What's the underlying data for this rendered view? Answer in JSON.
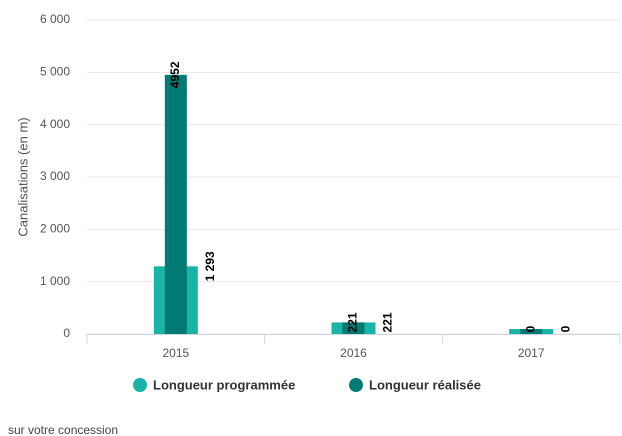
{
  "chart_data": {
    "type": "bar",
    "y_axis_label": "Canalisations (en m)",
    "categories": [
      "2015",
      "2016",
      "2017"
    ],
    "series": [
      {
        "name": "Longueur programmée",
        "color": "#1ab3a6",
        "values": [
          1293,
          221,
          0
        ],
        "value_labels": [
          "1 293",
          "221",
          "0"
        ]
      },
      {
        "name": "Longueur réalisée",
        "color": "#007a73",
        "values": [
          4952,
          221,
          0
        ],
        "value_labels": [
          "4952",
          "221",
          "0"
        ]
      }
    ],
    "ylim": [
      0,
      6000
    ],
    "yticks": [
      {
        "value": 0,
        "label": "0"
      },
      {
        "value": 1000,
        "label": "1 000"
      },
      {
        "value": 2000,
        "label": "2 000"
      },
      {
        "value": 3000,
        "label": "3 000"
      },
      {
        "value": 4000,
        "label": "4 000"
      },
      {
        "value": 5000,
        "label": "5 000"
      },
      {
        "value": 6000,
        "label": "6 000"
      }
    ],
    "grid": true,
    "caption": "sur votre concession"
  }
}
